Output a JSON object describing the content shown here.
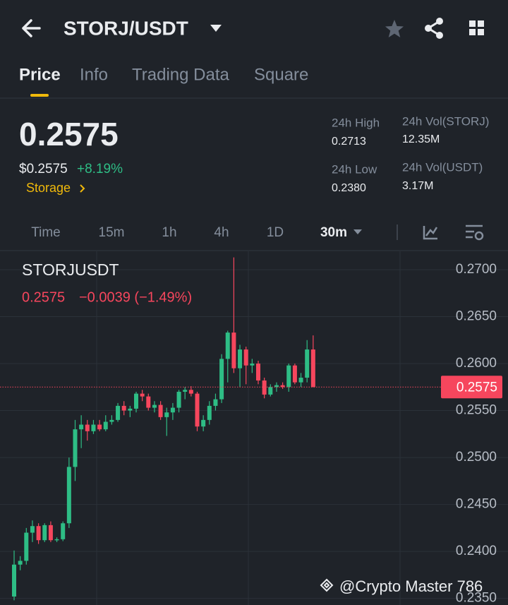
{
  "header": {
    "title": "STORJ/USDT"
  },
  "tabs": [
    "Price",
    "Info",
    "Trading Data",
    "Square"
  ],
  "price": {
    "last": "0.2575",
    "usd": "$0.2575",
    "change": "+8.19%",
    "tag": "Storage"
  },
  "stats": [
    {
      "label": "24h High",
      "value": "0.2713"
    },
    {
      "label": "24h Vol(STORJ)",
      "value": "12.35M"
    },
    {
      "label": "24h Low",
      "value": "0.2380"
    },
    {
      "label": "24h Vol(USDT)",
      "value": "3.17M"
    }
  ],
  "intervals": [
    "Time",
    "15m",
    "1h",
    "4h",
    "1D",
    "30m"
  ],
  "chart_data": {
    "type": "candlestick",
    "title": "STORJUSDT",
    "legend": [
      "0.2575",
      "−0.0039 (−1.49%)"
    ],
    "open": [
      0.2352,
      0.2386,
      0.239,
      0.242,
      0.2427,
      0.2412,
      0.2428,
      0.2412,
      0.2413,
      0.243,
      0.249,
      0.253,
      0.2535,
      0.2528,
      0.2535,
      0.253,
      0.2538,
      0.254,
      0.2555,
      0.255,
      0.2552,
      0.2568,
      0.2565,
      0.2553,
      0.2556,
      0.2543,
      0.2548,
      0.2553,
      0.257,
      0.2572,
      0.2568,
      0.2533,
      0.254,
      0.2555,
      0.2562,
      0.2605,
      0.2633,
      0.2595,
      0.2615,
      0.2598,
      0.26,
      0.2582,
      0.2567,
      0.2575,
      0.2577,
      0.2575,
      0.2598,
      0.258,
      0.2585,
      0.2615
    ],
    "high": [
      0.2401,
      0.2395,
      0.2425,
      0.2433,
      0.243,
      0.243,
      0.2432,
      0.2415,
      0.2432,
      0.25,
      0.254,
      0.2545,
      0.254,
      0.254,
      0.254,
      0.2545,
      0.2545,
      0.2558,
      0.256,
      0.2555,
      0.257,
      0.2572,
      0.2568,
      0.256,
      0.256,
      0.2553,
      0.2558,
      0.2572,
      0.2575,
      0.2576,
      0.257,
      0.2545,
      0.256,
      0.2568,
      0.261,
      0.2635,
      0.2713,
      0.262,
      0.2618,
      0.2605,
      0.2603,
      0.2585,
      0.2578,
      0.258,
      0.258,
      0.26,
      0.26,
      0.259,
      0.2625,
      0.263
    ],
    "low": [
      0.2348,
      0.238,
      0.2386,
      0.241,
      0.2408,
      0.241,
      0.241,
      0.241,
      0.2411,
      0.2425,
      0.2475,
      0.251,
      0.2518,
      0.2525,
      0.2528,
      0.2528,
      0.2535,
      0.2538,
      0.2545,
      0.2543,
      0.2548,
      0.256,
      0.255,
      0.2548,
      0.254,
      0.2523,
      0.254,
      0.2548,
      0.2562,
      0.2565,
      0.2528,
      0.2528,
      0.2535,
      0.255,
      0.2558,
      0.258,
      0.259,
      0.2575,
      0.2578,
      0.259,
      0.2578,
      0.2563,
      0.2565,
      0.257,
      0.2573,
      0.257,
      0.2578,
      0.2575,
      0.258,
      0.2575
    ],
    "close": [
      0.2386,
      0.239,
      0.242,
      0.2427,
      0.2412,
      0.2428,
      0.2412,
      0.2413,
      0.243,
      0.249,
      0.253,
      0.2535,
      0.2528,
      0.2535,
      0.253,
      0.2538,
      0.254,
      0.2555,
      0.255,
      0.2552,
      0.2568,
      0.2565,
      0.2553,
      0.2556,
      0.2543,
      0.2548,
      0.2553,
      0.257,
      0.2572,
      0.2568,
      0.2533,
      0.254,
      0.2555,
      0.2562,
      0.2605,
      0.2633,
      0.2595,
      0.2615,
      0.2598,
      0.26,
      0.2582,
      0.2567,
      0.2575,
      0.2577,
      0.2575,
      0.2598,
      0.258,
      0.2585,
      0.2615,
      0.2575
    ],
    "up_color": "#2ebd85",
    "down_color": "#f6465d",
    "ylim": [
      0.2343,
      0.2718
    ],
    "yticks": [
      {
        "value": 0.27,
        "label": "0.2700"
      },
      {
        "value": 0.265,
        "label": "0.2650"
      },
      {
        "value": 0.26,
        "label": "0.2600"
      },
      {
        "value": 0.255,
        "label": "0.2550"
      },
      {
        "value": 0.25,
        "label": "0.2500"
      },
      {
        "value": 0.245,
        "label": "0.2450"
      },
      {
        "value": 0.24,
        "label": "0.2400"
      },
      {
        "value": 0.235,
        "label": "0.2350"
      }
    ],
    "last_price": 0.2575,
    "grid": true
  },
  "watermark": "@Crypto Master 786"
}
